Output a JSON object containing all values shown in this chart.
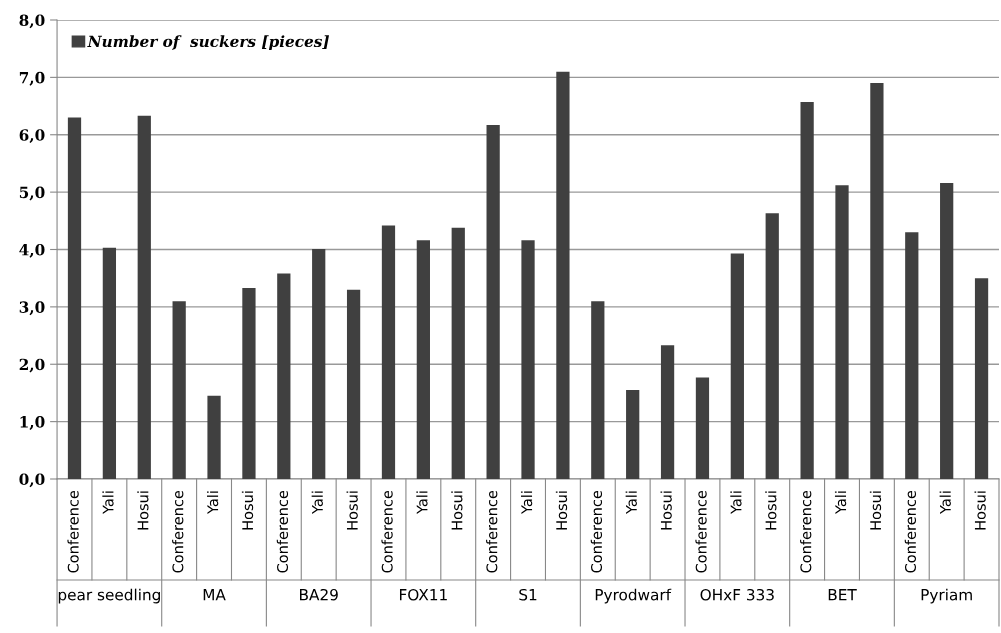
{
  "chart_data": {
    "type": "bar",
    "categories": [
      "Conference",
      "Yali",
      "Hosui",
      "Conference",
      "Yali",
      "Hosui",
      "Conference",
      "Yali",
      "Hosui",
      "Conference",
      "Yali",
      "Hosui",
      "Conference",
      "Yali",
      "Hosui",
      "Conference",
      "Yali",
      "Hosui",
      "Conference",
      "Yali",
      "Hosui",
      "Conference",
      "Yali",
      "Hosui",
      "Conference",
      "Yali",
      "Hosui"
    ],
    "series": [
      {
        "name": "Number of  suckers [pieces]",
        "color": "#404040",
        "values": [
          6.3,
          4.03,
          6.33,
          3.1,
          1.45,
          3.33,
          3.58,
          4.01,
          3.3,
          4.42,
          4.16,
          4.38,
          6.17,
          4.16,
          7.1,
          3.1,
          1.55,
          2.33,
          1.77,
          3.93,
          4.63,
          6.57,
          5.12,
          6.9,
          4.3,
          5.16,
          3.5
        ]
      }
    ],
    "annotations": [
      "pear seedling",
      "MA",
      "BA29",
      "FOX11",
      "S1",
      "Pyrodwarf",
      "OHxF 333",
      "BET",
      "Pyriam"
    ],
    "ylim": [
      0,
      8
    ],
    "yticks": [
      {
        "value": 0,
        "label": "0,0"
      },
      {
        "value": 1,
        "label": "1,0"
      },
      {
        "value": 2,
        "label": "2,0"
      },
      {
        "value": 3,
        "label": "3,0"
      },
      {
        "value": 4,
        "label": "4,0"
      },
      {
        "value": 5,
        "label": "5,0"
      },
      {
        "value": 6,
        "label": "6,0"
      },
      {
        "value": 7,
        "label": "7,0"
      },
      {
        "value": 8,
        "label": "8,0"
      }
    ],
    "grid": "y",
    "legend": "top left"
  }
}
